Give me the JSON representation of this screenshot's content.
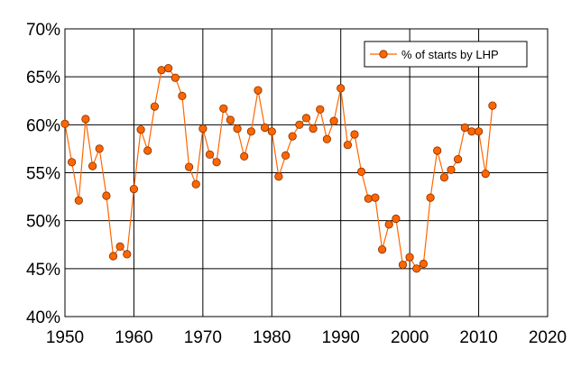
{
  "chart_data": {
    "type": "line",
    "title": "",
    "xlabel": "",
    "ylabel": "",
    "xlim": [
      1950,
      2020
    ],
    "ylim": [
      40,
      70
    ],
    "x_ticks": [
      1950,
      1960,
      1970,
      1980,
      1990,
      2000,
      2010,
      2020
    ],
    "y_ticks": [
      40,
      45,
      50,
      55,
      60,
      65,
      70
    ],
    "x_tick_labels": [
      "1950",
      "1960",
      "1970",
      "1980",
      "1990",
      "2000",
      "2010",
      "2020"
    ],
    "y_tick_labels": [
      "40%",
      "45%",
      "50%",
      "55%",
      "60%",
      "65%",
      "70%"
    ],
    "grid": true,
    "legend_position": "top-right",
    "series": [
      {
        "name": "% of starts by LHP",
        "color": "#ff6600",
        "marker_edge_color": "#7f2f00",
        "x": [
          1950,
          1951,
          1952,
          1953,
          1954,
          1955,
          1956,
          1957,
          1958,
          1959,
          1960,
          1961,
          1962,
          1963,
          1964,
          1965,
          1966,
          1967,
          1968,
          1969,
          1970,
          1971,
          1972,
          1973,
          1974,
          1975,
          1976,
          1977,
          1978,
          1979,
          1980,
          1981,
          1982,
          1983,
          1984,
          1985,
          1986,
          1987,
          1988,
          1989,
          1990,
          1991,
          1992,
          1993,
          1994,
          1995,
          1996,
          1997,
          1998,
          1999,
          2000,
          2001,
          2002,
          2003,
          2004,
          2005,
          2006,
          2007,
          2008,
          2009,
          2010,
          2011,
          2012
        ],
        "y": [
          60.1,
          56.1,
          52.1,
          60.6,
          55.7,
          57.5,
          52.6,
          46.3,
          47.3,
          46.5,
          53.3,
          59.5,
          57.3,
          61.9,
          65.7,
          65.9,
          64.9,
          63.0,
          55.6,
          53.8,
          59.6,
          56.9,
          56.1,
          61.7,
          60.5,
          59.6,
          56.7,
          59.3,
          63.6,
          59.7,
          59.3,
          54.6,
          56.8,
          58.8,
          60.0,
          60.7,
          59.6,
          61.6,
          58.5,
          60.4,
          63.8,
          57.9,
          59.0,
          55.1,
          52.3,
          52.4,
          47.0,
          49.6,
          50.2,
          45.4,
          46.2,
          45.0,
          45.5,
          52.4,
          57.3,
          54.5,
          55.3,
          56.4,
          59.7,
          59.3,
          59.3,
          54.9,
          62.0
        ]
      }
    ]
  }
}
